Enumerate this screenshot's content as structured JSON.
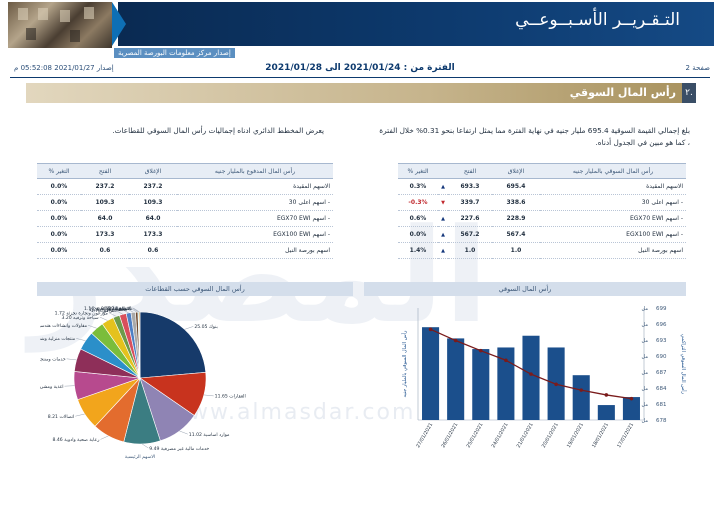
{
  "header": {
    "title": "التـقـريــر الأسـبــوعــي",
    "subtitle": "إصدار مركز معلومات البورصة المصرية"
  },
  "meta": {
    "page": "صفحة 2",
    "period": "الفترة من : 2021/01/24 الى 2021/01/28",
    "issue": "إصدار 2021/01/27 05:52:08 م"
  },
  "section": {
    "number": "٢.",
    "title": "رأس المال السوقي"
  },
  "paragraph_right": "بلغ إجمالي القيمة السوقية 695.4 مليار جنيه في نهاية الفترة مما يمثل ارتفاعا بنحو 0.31% خلال الفترة ، كما هو مبين في الجدول أدناه.",
  "paragraph_left": "يعرض المخطط الدائري ادناه إجماليات رأس المال السوقي للقطاعات.",
  "watermark": {
    "text": "المصدر",
    "url": "www.almasdar.com"
  },
  "table_right": {
    "headers": [
      "رأس المال السوقي بالمليار جنيه",
      "الإغلاق",
      "الفتح",
      "% التغير"
    ],
    "rows": [
      {
        "name": "الاسهم المقيدة",
        "close": "695.4",
        "open": "693.3",
        "change": "0.3%",
        "dir": "up"
      },
      {
        "name": "- اسهم اعلى 30",
        "close": "338.6",
        "open": "339.7",
        "change": "-0.3%",
        "dir": "down"
      },
      {
        "name": "- اسهم EGX70 EWI",
        "close": "228.9",
        "open": "227.6",
        "change": "0.6%",
        "dir": "up"
      },
      {
        "name": "- اسهم EGX100 EWI",
        "close": "567.4",
        "open": "567.2",
        "change": "0.0%",
        "dir": "up"
      },
      {
        "name": "اسهم بورصة النيل",
        "close": "1.0",
        "open": "1.0",
        "change": "1.4%",
        "dir": "up"
      }
    ]
  },
  "table_left": {
    "headers": [
      "رأس المال المدفوع بالمليار جنيه",
      "الإغلاق",
      "الفتح",
      "% التغير"
    ],
    "rows": [
      {
        "name": "الاسهم المقيدة",
        "close": "237.2",
        "open": "237.2",
        "change": "0.0%"
      },
      {
        "name": "- اسهم اعلى 30",
        "close": "109.3",
        "open": "109.3",
        "change": "0.0%"
      },
      {
        "name": "- اسهم EGX70 EWI",
        "close": "64.0",
        "open": "64.0",
        "change": "0.0%"
      },
      {
        "name": "- اسهم EGX100 EWI",
        "close": "173.3",
        "open": "173.3",
        "change": "0.0%"
      },
      {
        "name": "اسهم بورصة النيل",
        "close": "0.6",
        "open": "0.6",
        "change": "0.0%"
      }
    ]
  },
  "chart_titles": {
    "bar": "رأس المال السوقي",
    "pie": "رأس المال السوقي حسب القطاعات"
  },
  "chart_data": [
    {
      "type": "bar",
      "categories": [
        "27/01/2021",
        "26/01/2021",
        "25/01/2021",
        "24/01/2021",
        "21/01/2021",
        "20/01/2021",
        "19/01/2021",
        "18/01/2021",
        "17/01/2021"
      ],
      "series": [
        {
          "name": "",
          "values": [
            695.4,
            693.3,
            691.3,
            691.6,
            693.8,
            691.6,
            686.4,
            680.8,
            682.3
          ],
          "color": "#1b4f8c"
        },
        {
          "name": "",
          "values": [
            695.0,
            692.9,
            691.0,
            689.2,
            686.6,
            684.7,
            683.6,
            682.7,
            682.0
          ],
          "color": "#7a1b1b",
          "kind": "line"
        }
      ],
      "ylabel": "رأس المال السوقي بالمليار جنيه",
      "ylabel_right": "رأس المال السوقي التراكمي",
      "ylim": [
        678,
        699
      ],
      "y_ticks": [
        "699",
        "696",
        "693",
        "690",
        "687",
        "684",
        "681",
        "678"
      ],
      "y_ticks_right": [
        "مل 699",
        "مل 696",
        "مل 693",
        "مل 690",
        "مل 687",
        "مل 684",
        "مل 681",
        "مل 678"
      ],
      "grid": false
    },
    {
      "type": "pie",
      "labels": [
        "بنوك",
        "العقارات",
        "موارد اساسية",
        "خدمات مالية غير مصرفية",
        "رعاية صحية وادوية",
        "اتصالات",
        "اغذية ومشروبات وتبغ",
        "خدمات ومنتجات صناعية وسيارات",
        "منتجات منزلية وشخصية",
        "مقاولات وانشاءات هندسية",
        "سياحة وترفيه",
        "موزعون وتجارة تجزئة",
        "مرافق",
        "غاز وبترول",
        "ورق ومواد تعبئة",
        "كيماويات",
        "الاعلام",
        "تكنولوجيا"
      ],
      "values": [
        25.05,
        11.65,
        11.02,
        9.49,
        8.46,
        8.21,
        7.32,
        6.0,
        4.9,
        3.66,
        3.2,
        1.72,
        1.78,
        1.24,
        1.16,
        0.63,
        0.24,
        0.29
      ],
      "display_values": [
        "25.05",
        "11.65",
        "11.02",
        "9.49",
        "8.46",
        "8.21",
        "7.32",
        "6.00",
        "4.90",
        "3.66",
        "3.20",
        "1.72",
        "1.78",
        "1.24",
        "1.16",
        "0.63",
        "0.24",
        "0.29"
      ],
      "colors": [
        "#163a6a",
        "#c8331e",
        "#8f84b4",
        "#3b7d82",
        "#e36c2e",
        "#f2a51c",
        "#b74a8e",
        "#8e2f59",
        "#2b8fc9",
        "#7bbd3b",
        "#e4c21d",
        "#6c9b4a",
        "#d84f5c",
        "#4e7fc4",
        "#a9a9a9",
        "#6e4a2f",
        "#36b2a3",
        "#cb8f3a"
      ],
      "footnote": "الاسهم الرئيسية"
    }
  ]
}
